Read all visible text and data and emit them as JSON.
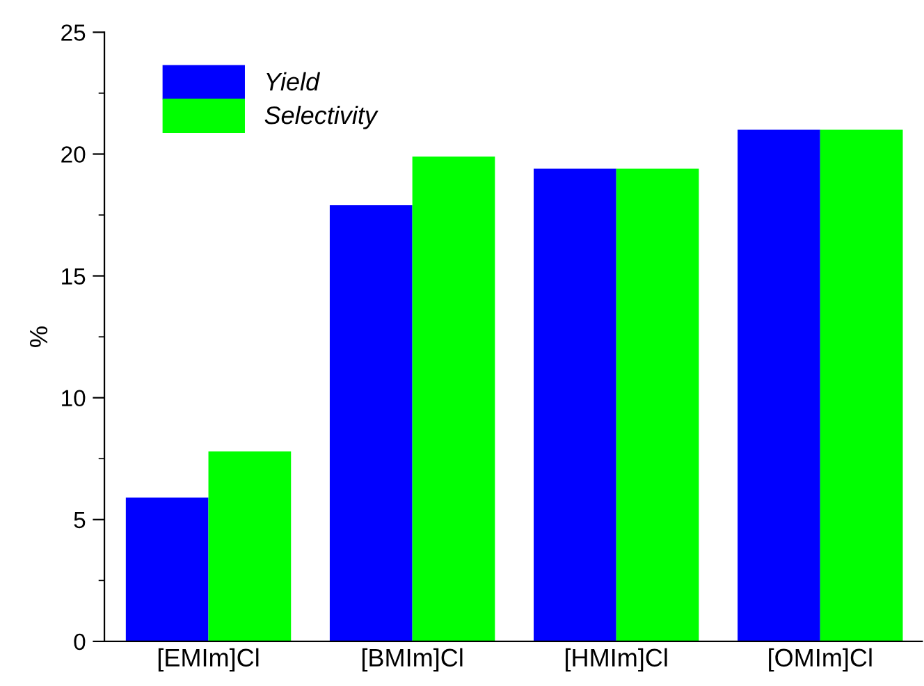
{
  "chart_data": {
    "type": "bar",
    "ylabel": "%",
    "categories": [
      "[EMIm]Cl",
      "[BMIm]Cl",
      "[HMIm]Cl",
      "[OMIm]Cl"
    ],
    "series": [
      {
        "name": "Yield",
        "color": "#0000ff",
        "values": [
          5.9,
          17.9,
          19.4,
          21.0
        ]
      },
      {
        "name": "Selectivity",
        "color": "#00ff00",
        "values": [
          7.8,
          19.9,
          19.4,
          21.0
        ]
      }
    ],
    "ylim": [
      0,
      25
    ],
    "yticks": [
      0,
      5,
      10,
      15,
      20,
      25
    ],
    "grid": false,
    "legend": "top left"
  }
}
